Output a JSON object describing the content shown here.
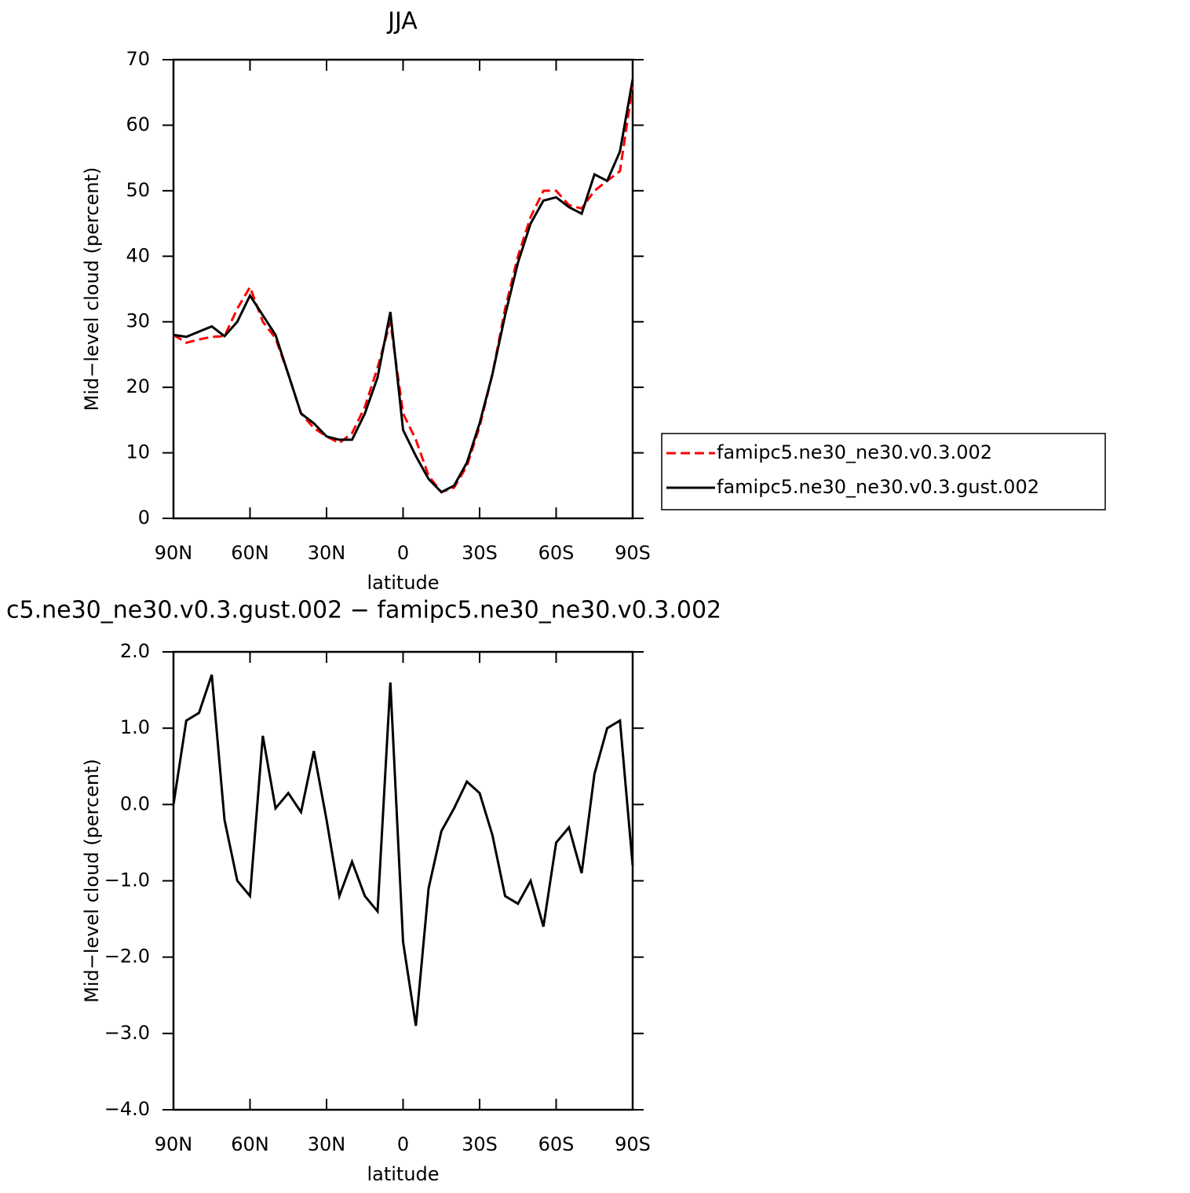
{
  "chart_data": [
    {
      "type": "line",
      "title": "JJA",
      "xlabel": "latitude",
      "ylabel": "Mid−level cloud (percent)",
      "x": [
        90,
        85,
        80,
        75,
        70,
        65,
        60,
        55,
        50,
        45,
        40,
        35,
        30,
        25,
        20,
        15,
        10,
        5,
        0,
        -5,
        -10,
        -15,
        -20,
        -25,
        -30,
        -35,
        -40,
        -45,
        -50,
        -55,
        -60,
        -65,
        -70,
        -75,
        -80,
        -85,
        -90
      ],
      "xlim": [
        90,
        -90
      ],
      "xticks": [
        {
          "value": 90,
          "label": "90N"
        },
        {
          "value": 60,
          "label": "60N"
        },
        {
          "value": 30,
          "label": "30N"
        },
        0,
        {
          "value": -30,
          "label": "30S"
        },
        {
          "value": -60,
          "label": "60S"
        },
        {
          "value": -90,
          "label": "90S"
        }
      ],
      "ylim": [
        0,
        70
      ],
      "yticks": [
        0,
        10,
        20,
        30,
        40,
        50,
        60,
        70
      ],
      "legend": "right",
      "series": [
        {
          "name": "famipc5.ne30_ne30.v0.3.002",
          "color": "#ff0000",
          "line_style": "dashed",
          "values": [
            28,
            26.8,
            27.3,
            27.7,
            27.8,
            32,
            35.3,
            30,
            27.5,
            22,
            16,
            13.8,
            12.5,
            11.5,
            13,
            17,
            23,
            30,
            16,
            12,
            6.5,
            4,
            4.7,
            8,
            14,
            22,
            32,
            40,
            46,
            50,
            50,
            47.8,
            47.3,
            50,
            51.5,
            53,
            66
          ]
        },
        {
          "name": "famipc5.ne30_ne30.v0.3.gust.002",
          "color": "#000000",
          "line_style": "solid",
          "values": [
            28,
            27.7,
            28.5,
            29.3,
            27.8,
            30,
            34,
            31,
            28,
            22,
            16,
            14.5,
            12.5,
            12,
            12,
            16,
            21.5,
            31.5,
            13.5,
            9.5,
            6,
            4,
            5,
            8.5,
            14.5,
            22,
            31,
            39,
            45,
            48.5,
            49,
            47.5,
            46.5,
            52.5,
            51.5,
            56,
            67
          ]
        }
      ]
    },
    {
      "type": "line",
      "title": "c5.ne30_ne30.v0.3.gust.002 − famipc5.ne30_ne30.v0.3.002",
      "xlabel": "latitude",
      "ylabel": "Mid−level cloud (percent)",
      "x": [
        90,
        85,
        80,
        75,
        70,
        65,
        60,
        55,
        50,
        45,
        40,
        35,
        30,
        25,
        20,
        15,
        10,
        5,
        0,
        -5,
        -10,
        -15,
        -20,
        -25,
        -30,
        -35,
        -40,
        -45,
        -50,
        -55,
        -60,
        -65,
        -70,
        -75,
        -80,
        -85,
        -90
      ],
      "xlim": [
        90,
        -90
      ],
      "xticks": [
        {
          "value": 90,
          "label": "90N"
        },
        {
          "value": 60,
          "label": "60N"
        },
        {
          "value": 30,
          "label": "30N"
        },
        0,
        {
          "value": -30,
          "label": "30S"
        },
        {
          "value": -60,
          "label": "60S"
        },
        {
          "value": -90,
          "label": "90S"
        }
      ],
      "ylim": [
        -4,
        2
      ],
      "yticks": [
        {
          "value": 2,
          "label": "2.0"
        },
        {
          "value": 1,
          "label": "1.0"
        },
        {
          "value": 0,
          "label": "0.0"
        },
        {
          "value": -1,
          "label": "−1.0"
        },
        {
          "value": -2,
          "label": "−2.0"
        },
        {
          "value": -3,
          "label": "−3.0"
        },
        {
          "value": -4,
          "label": "−4.0"
        }
      ],
      "series": [
        {
          "color": "#000000",
          "line_style": "solid",
          "values": [
            0,
            1.1,
            1.2,
            1.7,
            -0.2,
            -1.0,
            -1.2,
            0.9,
            -0.05,
            0.15,
            -0.1,
            0.7,
            -0.2,
            -1.2,
            -0.75,
            -1.2,
            -1.4,
            1.6,
            -1.8,
            -2.9,
            -1.1,
            -0.35,
            -0.05,
            0.3,
            0.15,
            -0.4,
            -1.2,
            -1.3,
            -1.0,
            -1.6,
            -0.5,
            -0.3,
            -0.9,
            0.4,
            1.0,
            1.1,
            -0.8
          ]
        }
      ]
    }
  ]
}
